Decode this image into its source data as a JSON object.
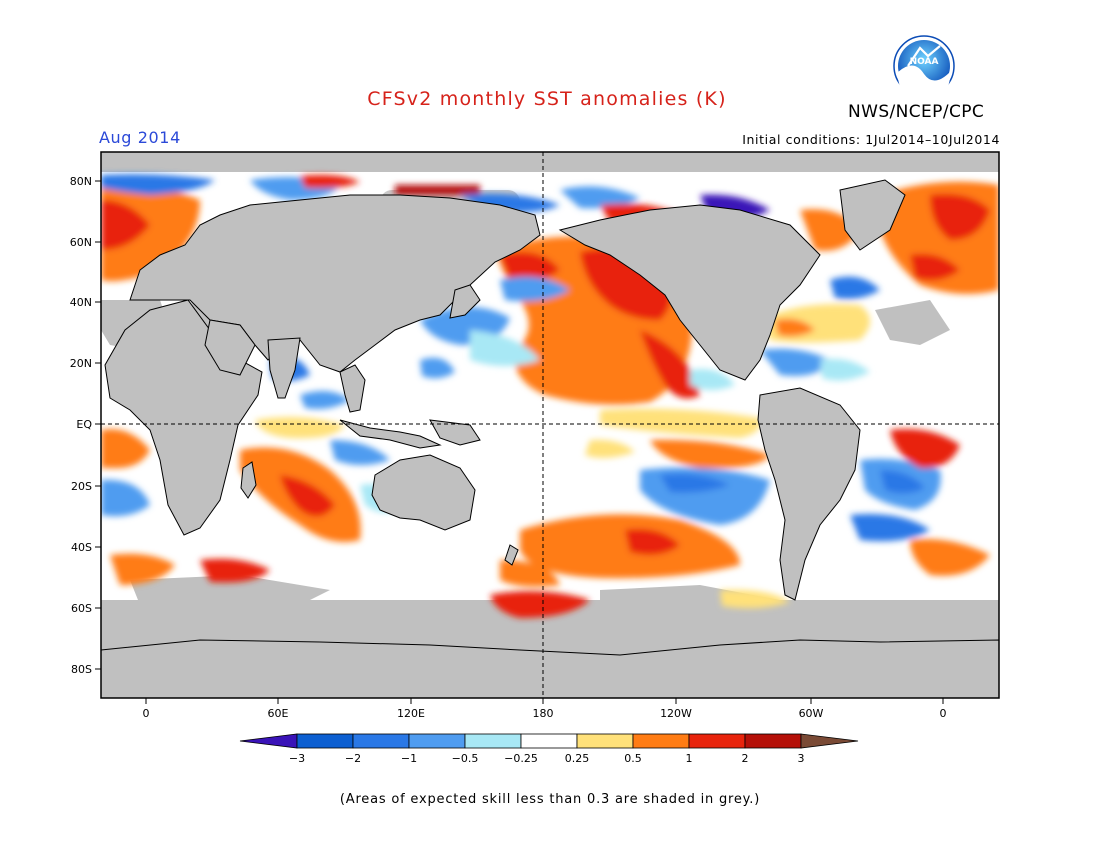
{
  "title": "CFSv2 monthly SST anomalies (K)",
  "agency": "NWS/NCEP/CPC",
  "logo_text": "NOAA",
  "month": "Aug 2014",
  "initial_conditions": "Initial conditions: 1Jul2014–10Jul2014",
  "footnote": "(Areas of expected skill less than 0.3 are shaded in grey.)",
  "map": {
    "lat_labels": [
      "80N",
      "60N",
      "40N",
      "20N",
      "EQ",
      "20S",
      "40S",
      "60S",
      "80S"
    ],
    "lon_labels": [
      "0",
      "60E",
      "120E",
      "180",
      "120W",
      "60W",
      "0"
    ]
  },
  "colorbar": {
    "labels": [
      "−3",
      "−2",
      "−1",
      "−0.5",
      "−0.25",
      "0.25",
      "0.5",
      "1",
      "2",
      "3"
    ],
    "colors": [
      "#3a13b8",
      "#0c5fd1",
      "#2a78e6",
      "#4f9cf0",
      "#a8e8f5",
      "#ffffff",
      "#ffe17a",
      "#ff7c14",
      "#e8240c",
      "#b51008",
      "#7a4a35"
    ]
  },
  "colors": {
    "land": "#c0c0c0",
    "title": "#d6221a",
    "month": "#2b49d8"
  }
}
